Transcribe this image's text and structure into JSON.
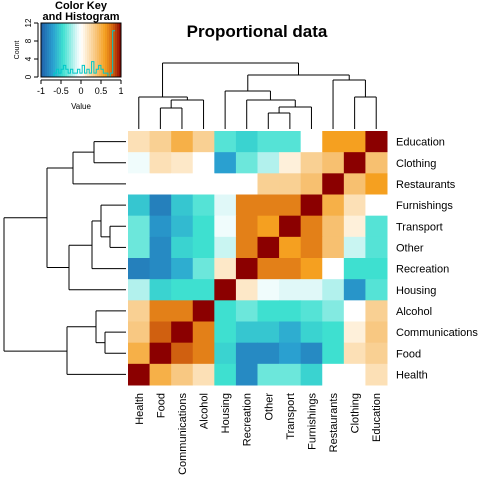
{
  "chart_data": {
    "type": "heatmap",
    "title": "Proportional data",
    "rows": [
      "Education",
      "Clothing",
      "Restaurants",
      "Furnishings",
      "Transport",
      "Other",
      "Recreation",
      "Housing",
      "Alcohol",
      "Communications",
      "Food",
      "Health"
    ],
    "columns": [
      "Health",
      "Food",
      "Communications",
      "Alcohol",
      "Housing",
      "Recreation",
      "Other",
      "Transport",
      "Furnishings",
      "Restaurants",
      "Clothing",
      "Education"
    ],
    "values": [
      [
        0.2,
        0.3,
        0.5,
        0.3,
        -0.4,
        -0.5,
        -0.4,
        -0.4,
        0.0,
        0.6,
        0.6,
        1.0
      ],
      [
        -0.05,
        0.2,
        0.15,
        0.0,
        -0.7,
        -0.35,
        -0.2,
        0.1,
        0.3,
        0.4,
        1.0,
        0.4
      ],
      [
        0.0,
        0.0,
        0.0,
        0.0,
        0.0,
        0.0,
        0.3,
        0.3,
        0.4,
        1.0,
        0.4,
        0.6
      ],
      [
        -0.55,
        -0.85,
        -0.55,
        -0.4,
        -0.1,
        0.7,
        0.7,
        0.7,
        1.0,
        0.5,
        0.2,
        0.0
      ],
      [
        -0.35,
        -0.75,
        -0.6,
        -0.45,
        -0.05,
        0.7,
        0.6,
        1.0,
        0.7,
        0.4,
        0.1,
        -0.4
      ],
      [
        -0.35,
        -0.8,
        -0.5,
        -0.45,
        -0.15,
        0.7,
        1.0,
        0.6,
        0.7,
        0.4,
        -0.15,
        -0.4
      ],
      [
        -0.85,
        -0.8,
        -0.65,
        -0.35,
        0.15,
        1.0,
        0.7,
        0.7,
        0.6,
        0.0,
        -0.45,
        -0.45
      ],
      [
        -0.2,
        -0.5,
        -0.45,
        -0.45,
        1.0,
        0.15,
        -0.05,
        -0.1,
        -0.1,
        -0.2,
        -0.75,
        -0.4
      ],
      [
        0.3,
        0.7,
        0.7,
        1.0,
        -0.45,
        -0.35,
        -0.45,
        -0.45,
        -0.4,
        -0.3,
        0.0,
        0.3
      ],
      [
        0.35,
        0.8,
        1.0,
        0.7,
        -0.45,
        -0.55,
        -0.55,
        -0.65,
        -0.5,
        -0.45,
        0.1,
        0.35
      ],
      [
        0.5,
        1.0,
        0.8,
        0.7,
        -0.5,
        -0.8,
        -0.8,
        -0.7,
        -0.8,
        -0.45,
        0.2,
        0.3
      ],
      [
        1.0,
        0.5,
        0.35,
        0.2,
        -0.45,
        -0.8,
        -0.35,
        -0.35,
        -0.5,
        0.0,
        0.0,
        0.2
      ]
    ],
    "color_scale": {
      "min": -1,
      "max": 1,
      "stops": [
        {
          "value": -1.0,
          "color": "#1f5fa8"
        },
        {
          "value": -0.7,
          "color": "#2aa0d0"
        },
        {
          "value": -0.45,
          "color": "#3ee0d0"
        },
        {
          "value": -0.1,
          "color": "#e0f8f8"
        },
        {
          "value": 0.0,
          "color": "#ffffff"
        },
        {
          "value": 0.15,
          "color": "#fde8c8"
        },
        {
          "value": 0.4,
          "color": "#f7c070"
        },
        {
          "value": 0.6,
          "color": "#f5a020"
        },
        {
          "value": 0.8,
          "color": "#d06010"
        },
        {
          "value": 1.0,
          "color": "#8b0000"
        }
      ]
    },
    "color_key": {
      "title_line1": "Color Key",
      "title_line2": "and Histogram",
      "xlabel": "Value",
      "ylabel": "Count",
      "xticks": [
        "-1",
        "-0.5",
        "0",
        "0.5",
        "1"
      ],
      "yticks": [
        "0",
        "4",
        "8",
        "12"
      ]
    },
    "dendrograms": true,
    "grid": false
  }
}
